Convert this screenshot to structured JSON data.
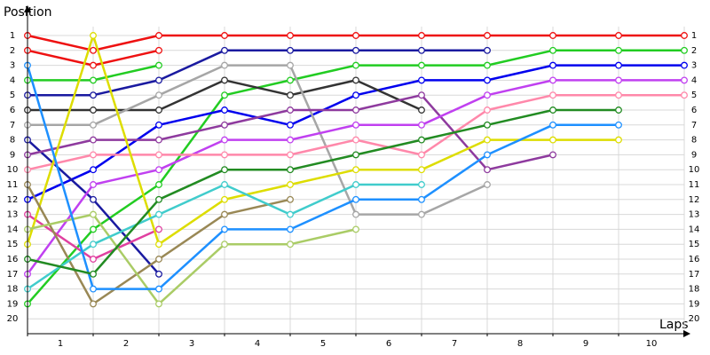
{
  "chart_data": {
    "type": "lap",
    "y_label": "Position",
    "x_label": "Laps",
    "x": [
      0,
      1,
      2,
      3,
      4,
      5,
      6,
      7,
      8,
      9,
      10
    ],
    "xlim": [
      0,
      10
    ],
    "xticks": [
      {
        "value": 0.5,
        "label": "1"
      },
      {
        "value": 1.5,
        "label": "2"
      },
      {
        "value": 2.5,
        "label": "3"
      },
      {
        "value": 3.5,
        "label": "4"
      },
      {
        "value": 4.5,
        "label": "5"
      },
      {
        "value": 5.5,
        "label": "6"
      },
      {
        "value": 6.5,
        "label": "7"
      },
      {
        "value": 7.5,
        "label": "8"
      },
      {
        "value": 8.5,
        "label": "9"
      },
      {
        "value": 9.5,
        "label": "10"
      }
    ],
    "ylim": [
      21,
      0
    ],
    "yticks": [
      1,
      2,
      3,
      4,
      5,
      6,
      7,
      8,
      9,
      10,
      11,
      12,
      13,
      14,
      15,
      16,
      17,
      18,
      19,
      20
    ],
    "grid": true,
    "series": [
      {
        "color": "#ee1111",
        "values": [
          1,
          2,
          1,
          1,
          1,
          1,
          1,
          1,
          1,
          1,
          1
        ]
      },
      {
        "color": "#ee1111",
        "values": [
          2,
          3,
          2,
          null,
          null,
          null,
          null,
          null,
          null,
          null,
          null
        ]
      },
      {
        "color": "#22cc22",
        "values": [
          4,
          4,
          3,
          null,
          null,
          null,
          null,
          null,
          null,
          null,
          null
        ]
      },
      {
        "color": "#22cc22",
        "values": [
          19,
          14,
          11,
          5,
          4,
          3,
          3,
          3,
          2,
          2,
          2
        ]
      },
      {
        "color": "#1a1aa0",
        "values": [
          5,
          5,
          4,
          2,
          2,
          2,
          2,
          2,
          null,
          null,
          null
        ]
      },
      {
        "color": "#0000ee",
        "values": [
          12,
          10,
          7,
          6,
          7,
          5,
          4,
          4,
          3,
          3,
          3
        ]
      },
      {
        "color": "#1a1aa0",
        "values": [
          8,
          12,
          17,
          null,
          null,
          null,
          null,
          null,
          null,
          null,
          null
        ]
      },
      {
        "color": "#333333",
        "values": [
          6,
          6,
          6,
          4,
          5,
          4,
          6,
          null,
          null,
          null,
          null
        ]
      },
      {
        "color": "#a6a6a6",
        "values": [
          7,
          7,
          5,
          3,
          3,
          13,
          13,
          11,
          null,
          null,
          null
        ]
      },
      {
        "color": "#8e3a9e",
        "values": [
          9,
          8,
          8,
          7,
          6,
          6,
          5,
          10,
          9,
          null,
          null
        ]
      },
      {
        "color": "#c040f0",
        "values": [
          17,
          11,
          10,
          8,
          8,
          7,
          7,
          5,
          4,
          4,
          4
        ]
      },
      {
        "color": "#ff88aa",
        "values": [
          10,
          9,
          9,
          9,
          9,
          8,
          9,
          6,
          5,
          5,
          5
        ]
      },
      {
        "color": "#e040a0",
        "values": [
          13,
          16,
          14,
          null,
          null,
          null,
          null,
          null,
          null,
          null,
          null
        ]
      },
      {
        "color": "#dddd00",
        "values": [
          15,
          1,
          15,
          12,
          11,
          10,
          10,
          8,
          8,
          8,
          null
        ]
      },
      {
        "color": "#998855",
        "values": [
          11,
          19,
          16,
          13,
          12,
          null,
          null,
          null,
          null,
          null,
          null
        ]
      },
      {
        "color": "#aacc66",
        "values": [
          14,
          13,
          19,
          15,
          15,
          14,
          null,
          null,
          null,
          null,
          null
        ]
      },
      {
        "color": "#40cccc",
        "values": [
          18,
          15,
          13,
          11,
          13,
          11,
          11,
          null,
          null,
          null,
          null
        ]
      },
      {
        "color": "#1e90ff",
        "values": [
          3,
          18,
          18,
          14,
          14,
          12,
          12,
          9,
          7,
          7,
          null
        ]
      },
      {
        "color": "#228b22",
        "values": [
          16,
          17,
          12,
          10,
          10,
          9,
          8,
          7,
          6,
          6,
          null
        ]
      }
    ]
  }
}
